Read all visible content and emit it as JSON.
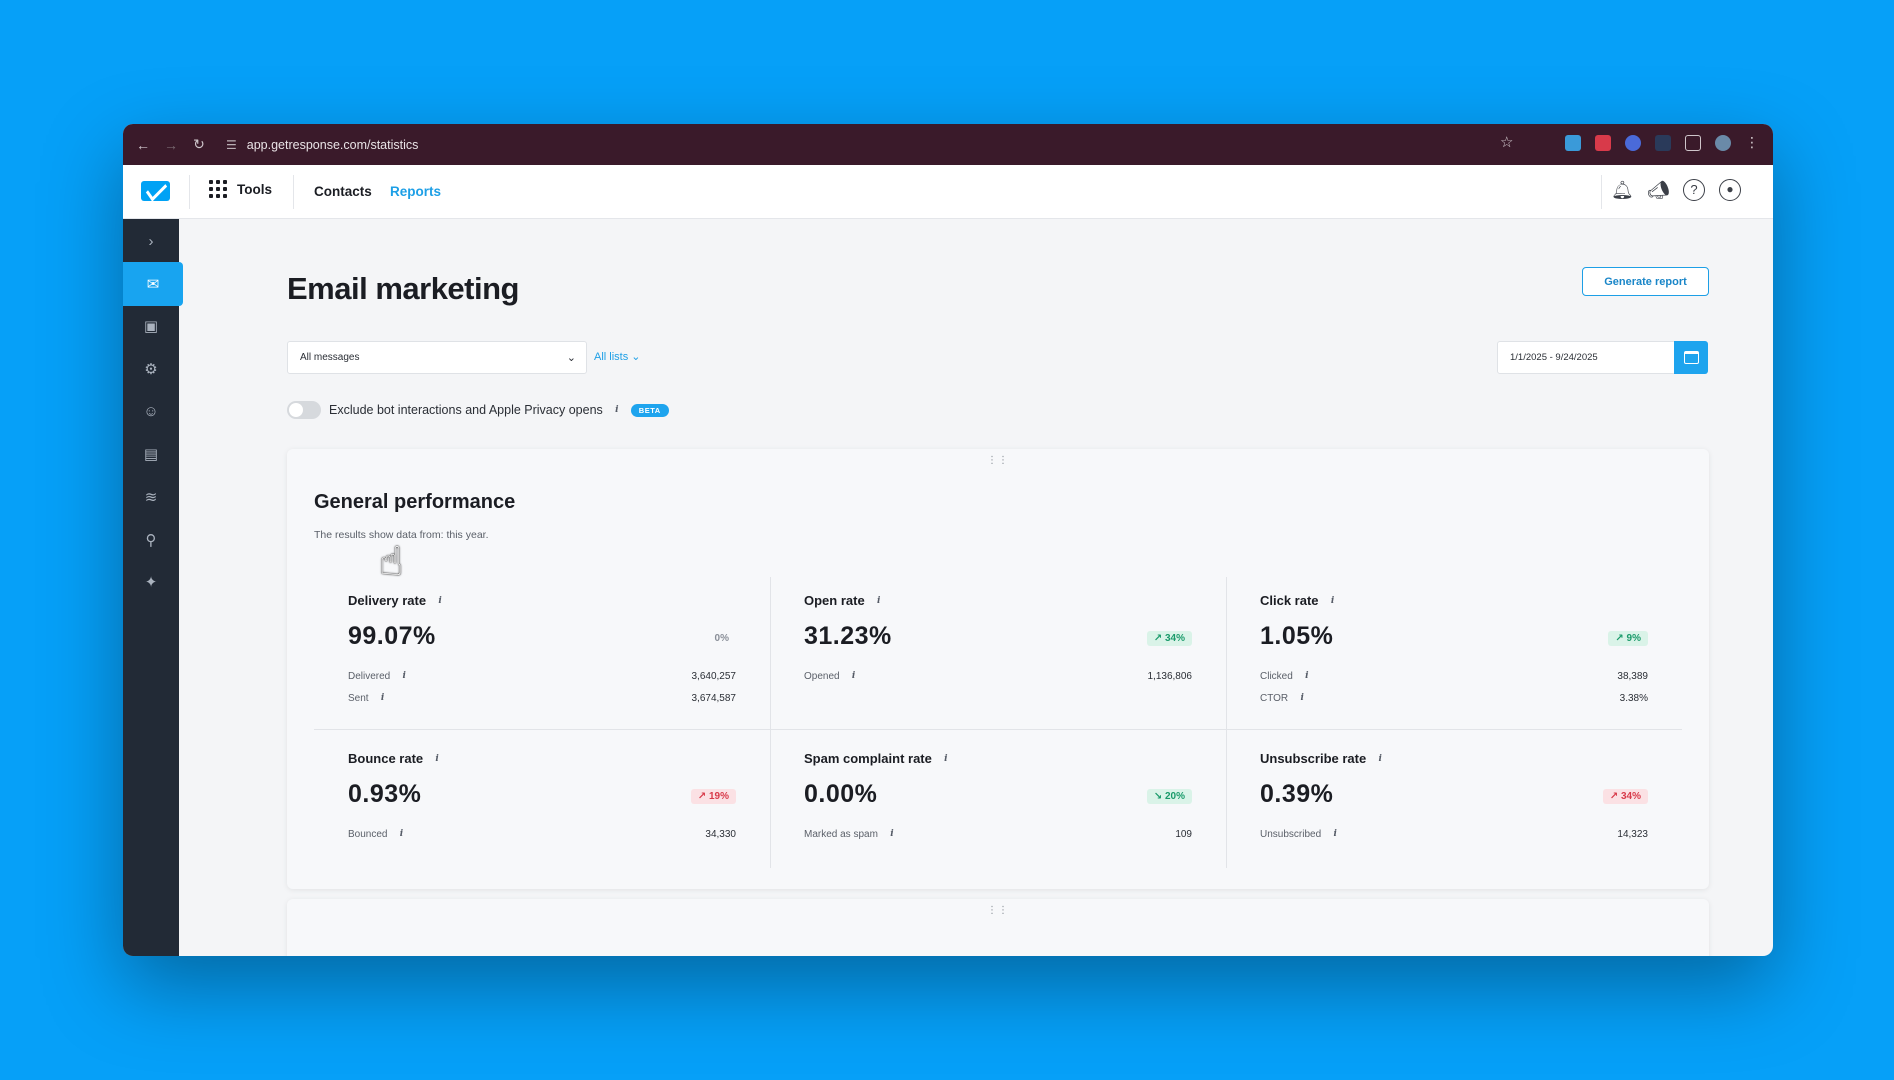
{
  "browser": {
    "url": "app.getresponse.com/statistics",
    "back_icon": "arrow-left-icon",
    "forward_icon": "arrow-right-icon",
    "reload_icon": "reload-icon"
  },
  "header": {
    "tools_label": "Tools",
    "nav": [
      {
        "label": "Contacts",
        "color": "#1b1d23"
      },
      {
        "label": "Reports",
        "color": "#1d9fe6"
      }
    ]
  },
  "page": {
    "title": "Email marketing",
    "generate_report": "Generate report",
    "message_filter": "All messages",
    "lists_filter": "All lists ⌄",
    "date_range": "1/1/2025 - 9/24/2025",
    "exclude_toggle_label": "Exclude bot interactions and Apple Privacy opens",
    "beta_badge": "BETA"
  },
  "card": {
    "title": "General performance",
    "subtitle": "The results show data from: this year.",
    "metrics": [
      {
        "label": "Delivery rate",
        "value": "99.07%",
        "badge": "0%",
        "trend": "neutral",
        "rows": [
          {
            "label": "Delivered",
            "value": "3,640,257"
          },
          {
            "label": "Sent",
            "value": "3,674,587"
          }
        ]
      },
      {
        "label": "Open rate",
        "value": "31.23%",
        "badge": "↗ 34%",
        "trend": "green",
        "rows": [
          {
            "label": "Opened",
            "value": "1,136,806"
          }
        ]
      },
      {
        "label": "Click rate",
        "value": "1.05%",
        "badge": "↗ 9%",
        "trend": "green",
        "rows": [
          {
            "label": "Clicked",
            "value": "38,389"
          },
          {
            "label": "CTOR",
            "value": "3.38%"
          }
        ]
      },
      {
        "label": "Bounce rate",
        "value": "0.93%",
        "badge": "↗ 19%",
        "trend": "red",
        "rows": [
          {
            "label": "Bounced",
            "value": "34,330"
          }
        ]
      },
      {
        "label": "Spam complaint rate",
        "value": "0.00%",
        "badge": "↘ 20%",
        "trend": "green",
        "rows": [
          {
            "label": "Marked as spam",
            "value": "109"
          }
        ]
      },
      {
        "label": "Unsubscribe rate",
        "value": "0.39%",
        "badge": "↗ 34%",
        "trend": "red",
        "rows": [
          {
            "label": "Unsubscribed",
            "value": "14,323"
          }
        ]
      }
    ]
  }
}
